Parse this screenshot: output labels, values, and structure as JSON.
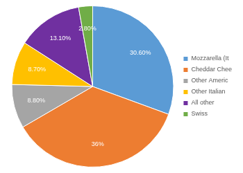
{
  "chart_data": {
    "type": "pie",
    "categories": [
      "Mozzarella (It",
      "Cheddar Chee",
      "Other Americ",
      "Other Italian",
      "All other",
      "Swiss"
    ],
    "values": [
      30.6,
      36,
      8.8,
      8.7,
      13.1,
      2.8
    ],
    "value_labels": [
      "30.60%",
      "36%",
      "8.80%",
      "8.70%",
      "13.10%",
      "2.80%"
    ],
    "colors": [
      "#5b9bd5",
      "#ed7d31",
      "#a5a5a5",
      "#ffc000",
      "#7030a0",
      "#70ad47"
    ],
    "data_labels": true,
    "legend": "right"
  }
}
